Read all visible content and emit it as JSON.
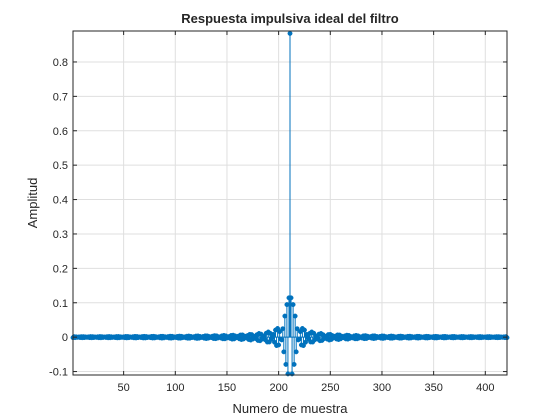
{
  "chart_data": {
    "type": "stem",
    "title": "Respuesta impulsiva ideal del filtro",
    "xlabel": "Numero de muestra",
    "ylabel": "Amplitud",
    "xlim": [
      1,
      421
    ],
    "ylim": [
      -0.11,
      0.89
    ],
    "xticks": [
      50,
      100,
      150,
      200,
      250,
      300,
      350,
      400
    ],
    "yticks": [
      -0.1,
      0,
      0.1,
      0.2,
      0.3,
      0.4,
      0.5,
      0.6,
      0.7,
      0.8
    ],
    "ytick_labels": [
      "-0.1",
      "0",
      "0.1",
      "0.2",
      "0.3",
      "0.4",
      "0.5",
      "0.6",
      "0.7",
      "0.8"
    ],
    "grid": true,
    "series_color": "#0072bd",
    "peak_index": 211,
    "peak_value": 0.883,
    "length": 421,
    "signal_model": {
      "form": "ideal sinc impulse response",
      "cutoff_ratio": 0.883,
      "x_start": 1,
      "x_end": 421
    }
  }
}
